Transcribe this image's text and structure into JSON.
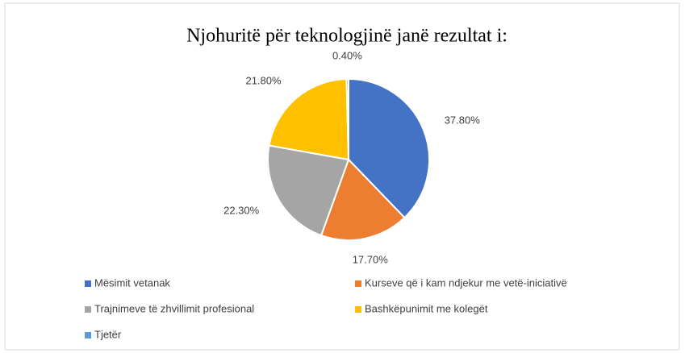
{
  "chart_data": {
    "type": "pie",
    "title": "Njohuritë për teknologjinë janë rezultat i:",
    "categories": [
      "Mësimit vetanak",
      "Kurseve që i kam ndjekur me vetë-iniciativë",
      "Trajnimeve të zhvillimit profesional",
      "Bashkëpunimit me kolegët",
      "Tjetër"
    ],
    "values": [
      37.8,
      17.7,
      22.3,
      21.8,
      0.4
    ],
    "value_labels": [
      "37.80%",
      "17.70%",
      "22.30%",
      "21.80%",
      "0.40%"
    ],
    "colors": [
      "#4472c4",
      "#ed7d31",
      "#a5a5a5",
      "#ffc000",
      "#5b9bd5"
    ]
  }
}
